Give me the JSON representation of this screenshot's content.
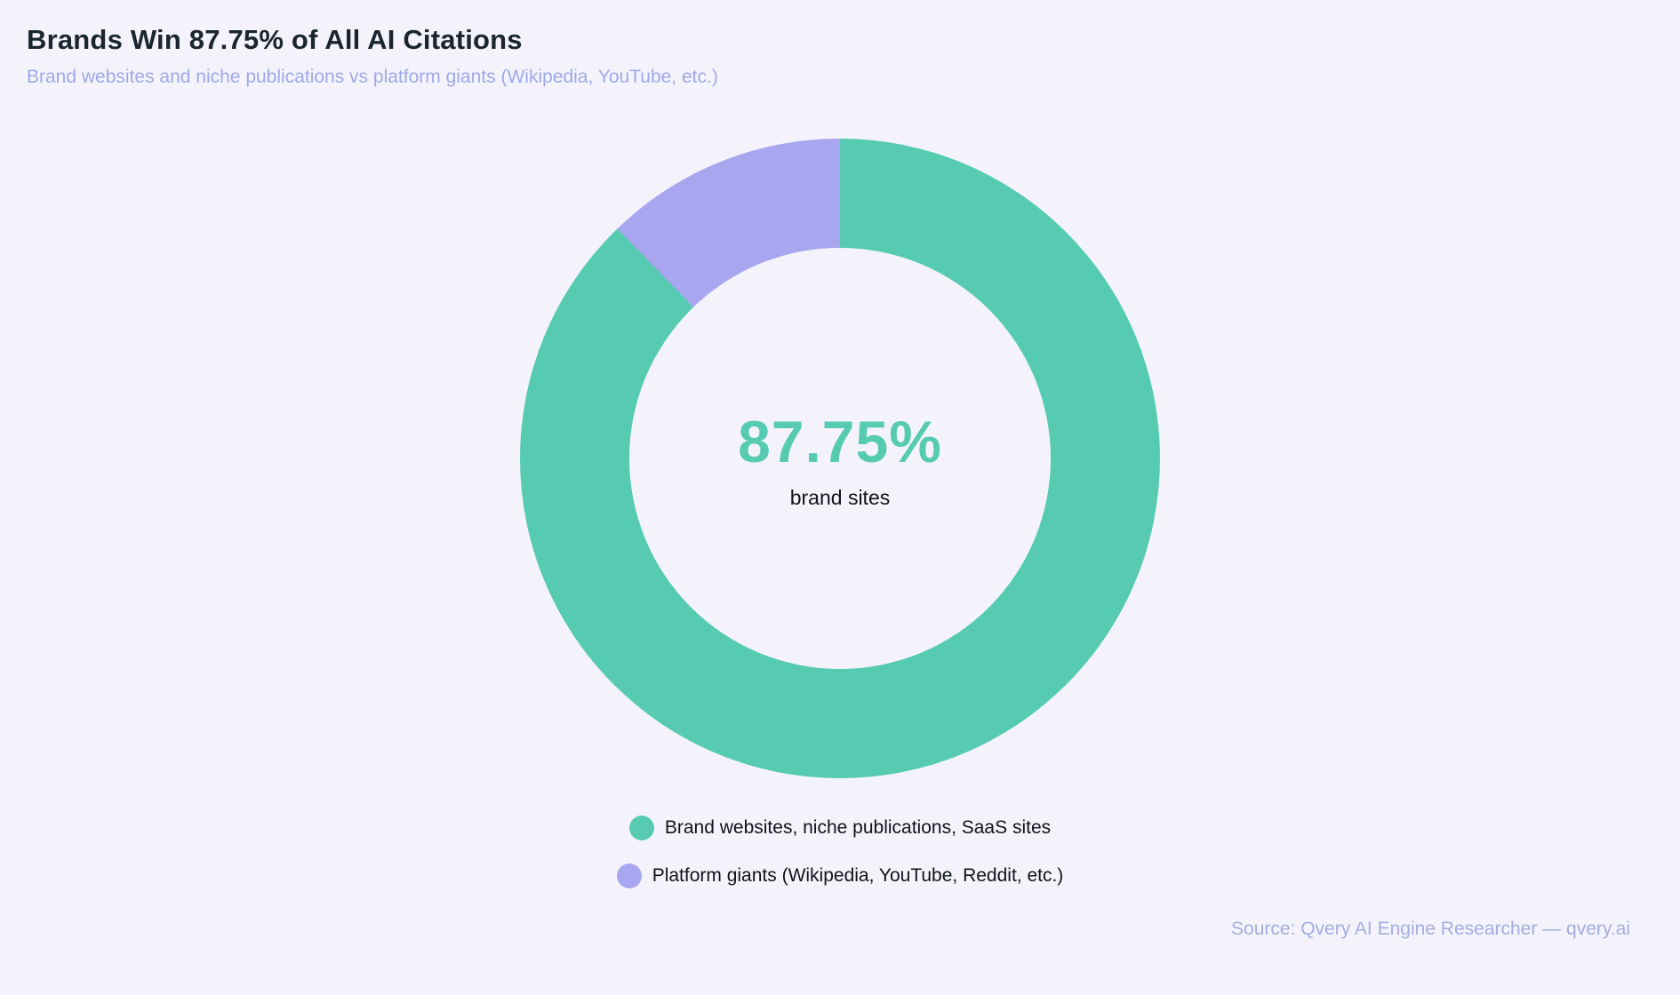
{
  "header": {
    "title": "Brands Win 87.75% of All AI Citations",
    "subtitle": "Brand websites and niche publications vs platform giants (Wikipedia, YouTube, etc.)"
  },
  "chart_data": {
    "type": "pie",
    "variant": "donut",
    "title": "Brands Win 87.75% of All AI Citations",
    "subtitle": "Brand websites and niche publications vs platform giants (Wikipedia, YouTube, etc.)",
    "labels": [
      "Brand websites, niche publications, SaaS sites",
      "Platform giants (Wikipedia, YouTube, Reddit, etc.)"
    ],
    "values": [
      87.75,
      12.25
    ],
    "colors": [
      "#57cbb2",
      "#a8a6ef"
    ],
    "start_angle_deg": 0,
    "direction": "clockwise",
    "legend_position": "bottom",
    "center": {
      "value": "87.75%",
      "caption": "brand sites"
    }
  },
  "legend": {
    "items": [
      {
        "label": "Brand websites, niche publications, SaaS sites",
        "color": "#57cbb2"
      },
      {
        "label": "Platform giants (Wikipedia, YouTube, Reddit, etc.)",
        "color": "#a8a6ef"
      }
    ]
  },
  "footer": {
    "source": "Source: Qvery AI Engine Researcher — qvery.ai"
  },
  "colors": {
    "background": "#f4f3fc",
    "title_text": "#1b2530",
    "subtitle_text": "#9ea8e8",
    "teal": "#57cbb2",
    "purple": "#a8a6ef",
    "body_text": "#10131a",
    "source_text": "#a3addf"
  }
}
